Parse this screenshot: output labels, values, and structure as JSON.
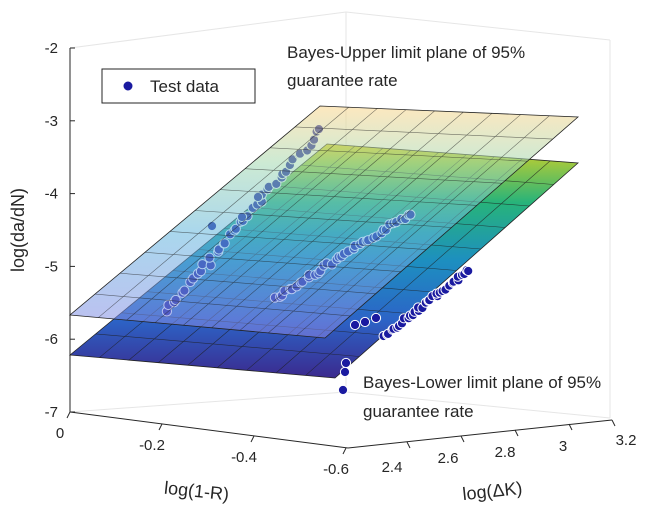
{
  "chart_data": {
    "type": "scatter3d",
    "zlabel": "log(da/dN)",
    "xlabel": "log(1-R)",
    "ylabel": "log(ΔK)",
    "z_ticks": [
      "-2",
      "-3",
      "-4",
      "-5",
      "-6",
      "-7"
    ],
    "x_ticks": [
      "0",
      "-0.2",
      "-0.4",
      "-0.6"
    ],
    "y_ticks": [
      "2.4",
      "2.6",
      "2.8",
      "3",
      "3.2"
    ],
    "zlim": [
      -7,
      -2
    ],
    "legend": {
      "label": "Test data",
      "placement": "top-left",
      "marker_color": "#1a1aa0"
    },
    "annotations": {
      "upper": [
        "Bayes-Upper limit plane of 95%",
        "guarantee rate"
      ],
      "lower": [
        "Bayes-Lower limit plane of 95%",
        "guarantee rate"
      ]
    },
    "series_groups": [
      {
        "log_one_minus_R": -0.05,
        "log_dK_range": [
          2.32,
          2.95
        ],
        "log_dadN_range": [
          -5.6,
          -3.1
        ]
      },
      {
        "log_one_minus_R": -0.3,
        "log_dK_range": [
          2.38,
          2.95
        ],
        "log_dadN_range": [
          -5.5,
          -4.2
        ]
      },
      {
        "log_one_minus_R": -0.55,
        "log_dK_range": [
          2.4,
          2.95
        ],
        "log_dadN_range": [
          -6.7,
          -5.1
        ]
      }
    ],
    "colors": {
      "surface_low": "#3e2b8f",
      "surface_mid": "#1fa187",
      "surface_high": "#f6e05a",
      "marker": "#1a1aa0"
    }
  }
}
